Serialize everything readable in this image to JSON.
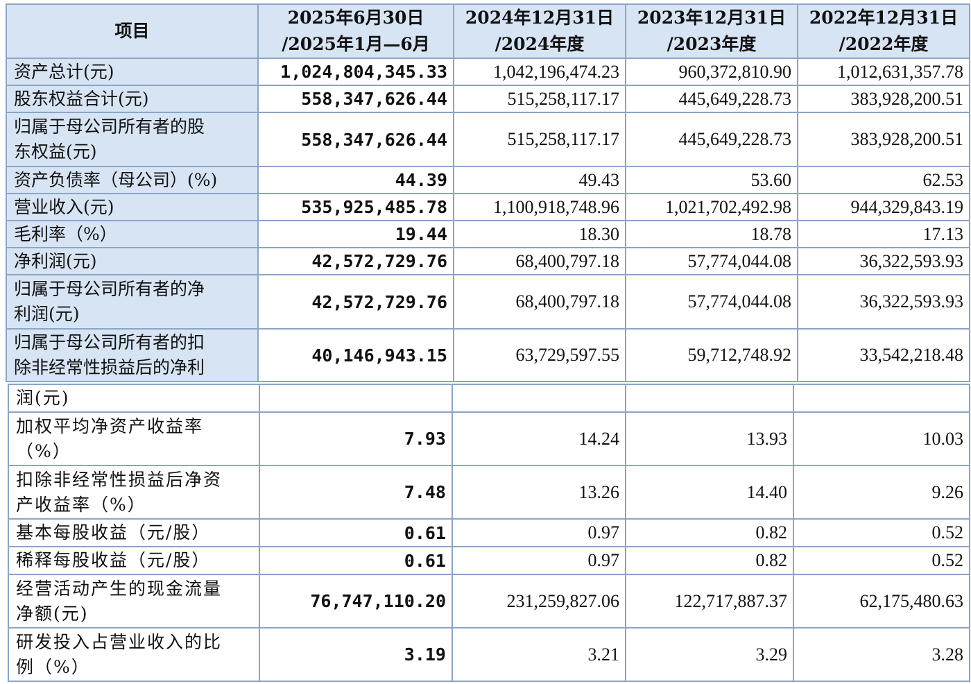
{
  "table": {
    "headers": [
      [
        "项目"
      ],
      [
        "2025年6月30日",
        "/2025年1月—6月"
      ],
      [
        "2024年12月31日",
        "/2024年度"
      ],
      [
        "2023年12月31日",
        "/2023年度"
      ],
      [
        "2022年12月31日",
        "/2022年度"
      ]
    ],
    "rows": [
      {
        "label": [
          "资产总计(元)"
        ],
        "values": [
          "1,024,804,345.33",
          "1,042,196,474.23",
          "960,372,810.90",
          "1,012,631,357.78"
        ]
      },
      {
        "label": [
          "股东权益合计(元)"
        ],
        "values": [
          "558,347,626.44",
          "515,258,117.17",
          "445,649,228.73",
          "383,928,200.51"
        ]
      },
      {
        "label": [
          "归属于母公司所有者的股",
          "东权益(元)"
        ],
        "values": [
          "558,347,626.44",
          "515,258,117.17",
          "445,649,228.73",
          "383,928,200.51"
        ]
      },
      {
        "label": [
          "资产负债率（母公司）(%)"
        ],
        "values": [
          "44.39",
          "49.43",
          "53.60",
          "62.53"
        ]
      },
      {
        "label": [
          "营业收入(元)"
        ],
        "values": [
          "535,925,485.78",
          "1,100,918,748.96",
          "1,021,702,492.98",
          "944,329,843.19"
        ]
      },
      {
        "label": [
          "毛利率（%）"
        ],
        "values": [
          "19.44",
          "18.30",
          "18.78",
          "17.13"
        ]
      },
      {
        "label": [
          "净利润(元)"
        ],
        "values": [
          "42,572,729.76",
          "68,400,797.18",
          "57,774,044.08",
          "36,322,593.93"
        ]
      },
      {
        "label": [
          "归属于母公司所有者的净",
          "利润(元)"
        ],
        "values": [
          "42,572,729.76",
          "68,400,797.18",
          "57,774,044.08",
          "36,322,593.93"
        ]
      },
      {
        "label": [
          "归属于母公司所有者的扣",
          "除非经常性损益后的净利"
        ],
        "values": [
          "40,146,943.15",
          "63,729,597.55",
          "59,712,748.92",
          "33,542,218.48"
        ]
      }
    ],
    "continuation": {
      "label": "润(元)"
    },
    "rows2": [
      {
        "label": [
          "加权平均净资产收益率",
          "（%）"
        ],
        "values": [
          "7.93",
          "14.24",
          "13.93",
          "10.03"
        ]
      },
      {
        "label": [
          "扣除非经常性损益后净资",
          "产收益率（%）"
        ],
        "values": [
          "7.48",
          "13.26",
          "14.40",
          "9.26"
        ]
      },
      {
        "label": [
          "基本每股收益（元/股）"
        ],
        "values": [
          "0.61",
          "0.97",
          "0.82",
          "0.52"
        ]
      },
      {
        "label": [
          "稀释每股收益（元/股）"
        ],
        "values": [
          "0.61",
          "0.97",
          "0.82",
          "0.52"
        ]
      },
      {
        "label": [
          "经营活动产生的现金流量",
          "净额(元)"
        ],
        "values": [
          "76,747,110.20",
          "231,259,827.06",
          "122,717,887.37",
          "62,175,480.63"
        ]
      },
      {
        "label": [
          "研发投入占营业收入的比",
          "例（%）"
        ],
        "values": [
          "3.19",
          "3.21",
          "3.29",
          "3.28"
        ]
      }
    ]
  }
}
